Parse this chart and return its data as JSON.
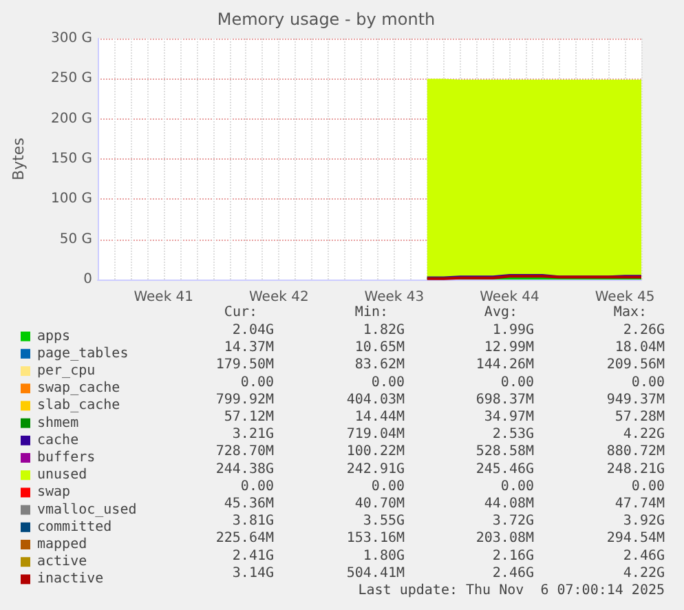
{
  "chart_data": {
    "type": "area",
    "stacked": true,
    "title": "Memory usage - by month",
    "ylabel": "Bytes",
    "categories": [
      null,
      null,
      null,
      null,
      "Week 41",
      null,
      null,
      null,
      null,
      null,
      null,
      "Week 42",
      null,
      null,
      null,
      null,
      null,
      null,
      "Week 43",
      null,
      null,
      null,
      null,
      null,
      null,
      "Week 44",
      null,
      null,
      null,
      null,
      null,
      null,
      "Week 45",
      null
    ],
    "ylim": [
      0,
      300
    ],
    "yticks": [
      0,
      {
        "value": 50,
        "label": "50 G"
      },
      {
        "value": 100,
        "label": "100 G"
      },
      {
        "value": 150,
        "label": "150 G"
      },
      {
        "value": 200,
        "label": "200 G"
      },
      {
        "value": 250,
        "label": "250 G"
      },
      {
        "value": 300,
        "label": "300 G"
      }
    ],
    "grid": true,
    "legend": "bottom left",
    "series": [
      {
        "name": "apps",
        "color": "#00cc00",
        "values": [
          null,
          null,
          null,
          null,
          null,
          null,
          null,
          null,
          null,
          null,
          null,
          null,
          null,
          null,
          null,
          null,
          null,
          null,
          null,
          null,
          2,
          2,
          2,
          2,
          2,
          2,
          2,
          2,
          2,
          2,
          2,
          2,
          2,
          2
        ]
      },
      {
        "name": "page_tables",
        "color": "#0066b3",
        "values": [
          null,
          null,
          null,
          null,
          null,
          null,
          null,
          null,
          null,
          null,
          null,
          null,
          null,
          null,
          null,
          null,
          null,
          null,
          null,
          null,
          null,
          null,
          null,
          null,
          null,
          null,
          null,
          null,
          null,
          null,
          null,
          null,
          null,
          null
        ]
      },
      {
        "name": "per_cpu",
        "color": "#ffe680",
        "values": [
          null,
          null,
          null,
          null,
          null,
          null,
          null,
          null,
          null,
          null,
          null,
          null,
          null,
          null,
          null,
          null,
          null,
          null,
          null,
          null,
          null,
          null,
          null,
          null,
          null,
          null,
          null,
          null,
          null,
          null,
          null,
          null,
          null,
          null
        ]
      },
      {
        "name": "swap_cache",
        "color": "#ff8000",
        "values": [
          null,
          null,
          null,
          null,
          null,
          null,
          null,
          null,
          null,
          null,
          null,
          null,
          null,
          null,
          null,
          null,
          null,
          null,
          null,
          null,
          null,
          null,
          null,
          null,
          null,
          null,
          null,
          null,
          null,
          null,
          null,
          null,
          null,
          null
        ]
      },
      {
        "name": "slab_cache",
        "color": "#ffcc00",
        "values": [
          null,
          null,
          null,
          null,
          null,
          null,
          null,
          null,
          null,
          null,
          null,
          null,
          null,
          null,
          null,
          null,
          null,
          null,
          null,
          null,
          null,
          null,
          null,
          null,
          null,
          null,
          null,
          null,
          null,
          null,
          null,
          null,
          null,
          null
        ]
      },
      {
        "name": "shmem",
        "color": "#008f00",
        "values": [
          null,
          null,
          null,
          null,
          null,
          null,
          null,
          null,
          null,
          null,
          null,
          null,
          null,
          null,
          null,
          null,
          null,
          null,
          null,
          null,
          null,
          null,
          null,
          null,
          null,
          null,
          null,
          null,
          null,
          null,
          null,
          null,
          null,
          null
        ]
      },
      {
        "name": "cache",
        "color": "#330099",
        "values": [
          null,
          null,
          null,
          null,
          null,
          null,
          null,
          null,
          null,
          null,
          null,
          null,
          null,
          null,
          null,
          null,
          null,
          null,
          null,
          null,
          1,
          1,
          2,
          2,
          2,
          4,
          4,
          4,
          2,
          2,
          2,
          2,
          3,
          3
        ]
      },
      {
        "name": "buffers",
        "color": "#990099",
        "values": [
          null,
          null,
          null,
          null,
          null,
          null,
          null,
          null,
          null,
          null,
          null,
          null,
          null,
          null,
          null,
          null,
          null,
          null,
          null,
          null,
          null,
          null,
          null,
          null,
          null,
          null,
          null,
          null,
          null,
          null,
          null,
          null,
          null,
          null
        ]
      },
      {
        "name": "unused",
        "color": "#ccff00",
        "values": [
          null,
          null,
          null,
          null,
          null,
          null,
          null,
          null,
          null,
          null,
          null,
          null,
          null,
          null,
          null,
          null,
          null,
          null,
          null,
          null,
          246,
          246,
          244,
          244,
          244,
          242,
          242,
          242,
          244,
          244,
          244,
          244,
          243,
          243
        ]
      },
      {
        "name": "swap",
        "color": "#ff0000",
        "values": [
          null,
          null,
          null,
          null,
          null,
          null,
          null,
          null,
          null,
          null,
          null,
          null,
          null,
          null,
          null,
          null,
          null,
          null,
          null,
          null,
          null,
          null,
          null,
          null,
          null,
          null,
          null,
          null,
          null,
          null,
          null,
          null,
          null,
          null
        ]
      },
      {
        "name": "vmalloc_used",
        "color": "#808080",
        "type": "line",
        "values": [
          null,
          null,
          null,
          null,
          null,
          null,
          null,
          null,
          null,
          null,
          null,
          null,
          null,
          null,
          null,
          null,
          null,
          null,
          null,
          null,
          null,
          null,
          null,
          null,
          null,
          null,
          null,
          null,
          null,
          null,
          null,
          null,
          null,
          null
        ]
      },
      {
        "name": "committed",
        "color": "#00487d",
        "type": "line",
        "values": [
          null,
          null,
          null,
          null,
          null,
          null,
          null,
          null,
          null,
          null,
          null,
          null,
          null,
          null,
          null,
          null,
          null,
          null,
          null,
          null,
          null,
          null,
          null,
          null,
          null,
          null,
          null,
          null,
          null,
          null,
          null,
          null,
          null,
          null
        ]
      },
      {
        "name": "mapped",
        "color": "#b35a00",
        "type": "line",
        "values": [
          null,
          null,
          null,
          null,
          null,
          null,
          null,
          null,
          null,
          null,
          null,
          null,
          null,
          null,
          null,
          null,
          null,
          null,
          null,
          null,
          null,
          null,
          null,
          null,
          null,
          null,
          null,
          null,
          null,
          null,
          null,
          null,
          null,
          null
        ]
      },
      {
        "name": "active",
        "color": "#b38f00",
        "type": "line",
        "values": [
          null,
          null,
          null,
          null,
          null,
          null,
          null,
          null,
          null,
          null,
          null,
          null,
          null,
          null,
          null,
          null,
          null,
          null,
          null,
          null,
          null,
          null,
          null,
          null,
          null,
          null,
          null,
          null,
          null,
          null,
          null,
          null,
          null,
          null
        ]
      },
      {
        "name": "inactive",
        "color": "#b30000",
        "type": "line",
        "values": [
          null,
          null,
          null,
          null,
          null,
          null,
          null,
          null,
          null,
          null,
          null,
          null,
          null,
          null,
          null,
          null,
          null,
          null,
          null,
          null,
          1,
          1,
          2,
          2,
          2,
          4,
          4,
          4,
          3,
          3,
          3,
          3,
          3,
          3
        ]
      }
    ],
    "annotations": [
      "Cur:",
      "Min:",
      "Avg:",
      "Max:",
      "2.04G",
      "1.82G",
      "1.99G",
      "2.26G",
      "14.37M",
      "10.65M",
      "12.99M",
      "18.04M",
      "179.50M",
      "83.62M",
      "144.26M",
      "209.56M",
      "0.00",
      "0.00",
      "0.00",
      "0.00",
      "799.92M",
      "404.03M",
      "698.37M",
      "949.37M",
      "57.12M",
      "14.44M",
      "34.97M",
      "57.28M",
      "3.21G",
      "719.04M",
      "2.53G",
      "4.22G",
      "728.70M",
      "100.22M",
      "528.58M",
      "880.72M",
      "244.38G",
      "242.91G",
      "245.46G",
      "248.21G",
      "0.00",
      "0.00",
      "0.00",
      "0.00",
      "45.36M",
      "40.70M",
      "44.08M",
      "47.74M",
      "3.81G",
      "3.55G",
      "3.72G",
      "3.92G",
      "225.64M",
      "153.16M",
      "203.08M",
      "294.54M",
      "2.41G",
      "1.80G",
      "2.16G",
      "2.46G",
      "3.14G",
      "504.41M",
      "2.46G",
      "4.22G",
      "Last update: Thu Nov  6 07:00:14 2025"
    ]
  }
}
